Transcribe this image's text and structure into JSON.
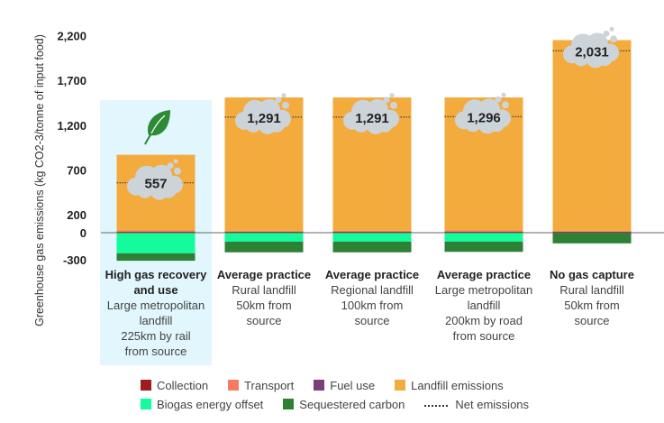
{
  "chart_data": {
    "type": "bar",
    "stacked": true,
    "title": "",
    "xlabel": "",
    "ylabel": "Greenhouse gas emissions (kg CO2-3/tonne of input food)",
    "ylim": [
      -350,
      2300
    ],
    "yticks": [
      2200,
      1700,
      1200,
      700,
      200,
      0,
      -300
    ],
    "ytick_labels": [
      "2,200",
      "1,700",
      "1,200",
      "700",
      "200",
      "0",
      "-300"
    ],
    "grid": false,
    "legend_position": "bottom",
    "categories": [
      {
        "title": "High gas recovery and use",
        "detail": "Large metropolitan\nlandfill\n225km by rail\nfrom source",
        "highlighted": true
      },
      {
        "title": "Average practice",
        "detail": "Rural landfill\n50km from\nsource",
        "highlighted": false
      },
      {
        "title": "Average practice",
        "detail": "Regional landfill\n100km from\nsource",
        "highlighted": false
      },
      {
        "title": "Average practice",
        "detail": "Large metropolitan\nlandfill\n200km by road\nfrom source",
        "highlighted": false
      },
      {
        "title": "No gas capture",
        "detail": "Rural landfill\n50km from\nsource",
        "highlighted": false
      }
    ],
    "series": [
      {
        "name": "Collection",
        "color": "#a01c1c",
        "values": [
          10,
          10,
          10,
          10,
          10
        ]
      },
      {
        "name": "Transport",
        "color": "#f87a62",
        "values": [
          15,
          8,
          10,
          15,
          8
        ]
      },
      {
        "name": "Fuel use",
        "color": "#7b3f78",
        "values": [
          1,
          1,
          1,
          1,
          1
        ]
      },
      {
        "name": "Landfill emissions",
        "color": "#f3ab3d",
        "values": [
          844,
          1491,
          1489,
          1484,
          2131
        ]
      },
      {
        "name": "Biogas energy offset",
        "color": "#14fb9b",
        "values": [
          -230,
          -100,
          -100,
          -100,
          0
        ]
      },
      {
        "name": "Sequestered carbon",
        "color": "#2e8035",
        "values": [
          -83,
          -119,
          -119,
          -114,
          -119
        ]
      }
    ],
    "net_emissions": {
      "name": "Net emissions",
      "values": [
        557,
        1291,
        1291,
        1296,
        2031
      ],
      "labels": [
        "557",
        "1,291",
        "1,291",
        "1,296",
        "2,031"
      ]
    }
  },
  "legend": {
    "row1": [
      {
        "label": "Collection",
        "color": "#a01c1c"
      },
      {
        "label": "Transport",
        "color": "#f87a62"
      },
      {
        "label": "Fuel use",
        "color": "#7b3f78"
      },
      {
        "label": "Landfill emissions",
        "color": "#f3ab3d"
      }
    ],
    "row2": [
      {
        "label": "Biogas energy offset",
        "color": "#14fb9b"
      },
      {
        "label": "Sequestered carbon",
        "color": "#2e8035"
      }
    ],
    "net_label": "Net emissions"
  },
  "colors": {
    "highlight_bg": "#e1f6fd",
    "cloud": "#ccd4da",
    "leaf": "#2e8b35",
    "axis": "#666666"
  },
  "icons": {
    "highlight": "leaf-icon",
    "net_marker": "cloud-icon"
  }
}
